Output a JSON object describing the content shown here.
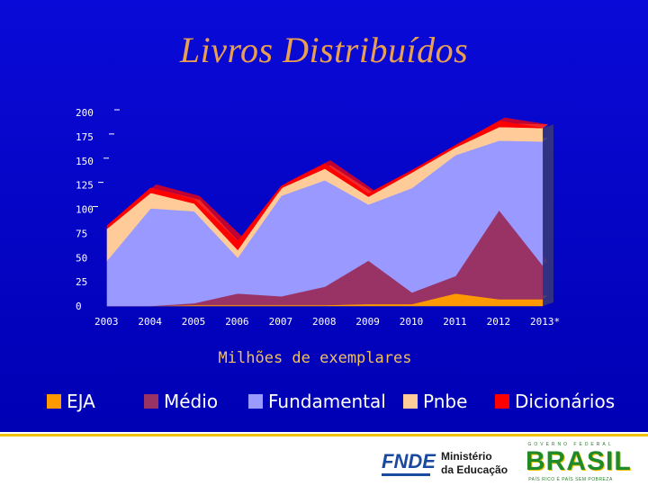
{
  "slide": {
    "title": "Livros Distribuídos",
    "unit_label": "Milhões de exemplares"
  },
  "chart_data": {
    "type": "area",
    "stacked": true,
    "title": "Livros Distribuídos",
    "xlabel": "",
    "ylabel": "",
    "x": [
      "2003",
      "2004",
      "2005",
      "2006",
      "2007",
      "2008",
      "2009",
      "2010",
      "2011",
      "2012",
      "2013*"
    ],
    "ylim": [
      0,
      200
    ],
    "yticks": [
      0,
      25,
      50,
      75,
      100,
      125,
      150,
      175,
      200
    ],
    "series": [
      {
        "name": "EJA",
        "color": "#ff9900",
        "values": [
          0,
          0,
          1,
          1,
          1,
          1,
          2,
          2,
          13,
          7,
          7
        ]
      },
      {
        "name": "Médio",
        "color": "#993366",
        "values": [
          0,
          0,
          2,
          12,
          9,
          19,
          45,
          12,
          18,
          92,
          35
        ]
      },
      {
        "name": "Fundamental",
        "color": "#9999ff",
        "values": [
          47,
          101,
          95,
          37,
          104,
          110,
          58,
          108,
          125,
          72,
          128
        ]
      },
      {
        "name": "Pnbe",
        "color": "#ffcc99",
        "values": [
          33,
          16,
          8,
          8,
          8,
          12,
          8,
          16,
          8,
          14,
          14
        ]
      },
      {
        "name": "Dicionários",
        "color": "#ff0000",
        "values": [
          3,
          5,
          4,
          9,
          2,
          5,
          3,
          2,
          2,
          6,
          0
        ]
      }
    ],
    "legend": "bottom",
    "grid": false
  },
  "footer": {
    "fnde_logo": "FNDE",
    "ministry_line1": "Ministério",
    "ministry_line2": "da Educação",
    "gov_line": "GOVERNO FEDERAL",
    "brasil_logo": "BRASIL",
    "brasil_motto": "PAÍS RICO É PAÍS SEM POBREZA"
  }
}
